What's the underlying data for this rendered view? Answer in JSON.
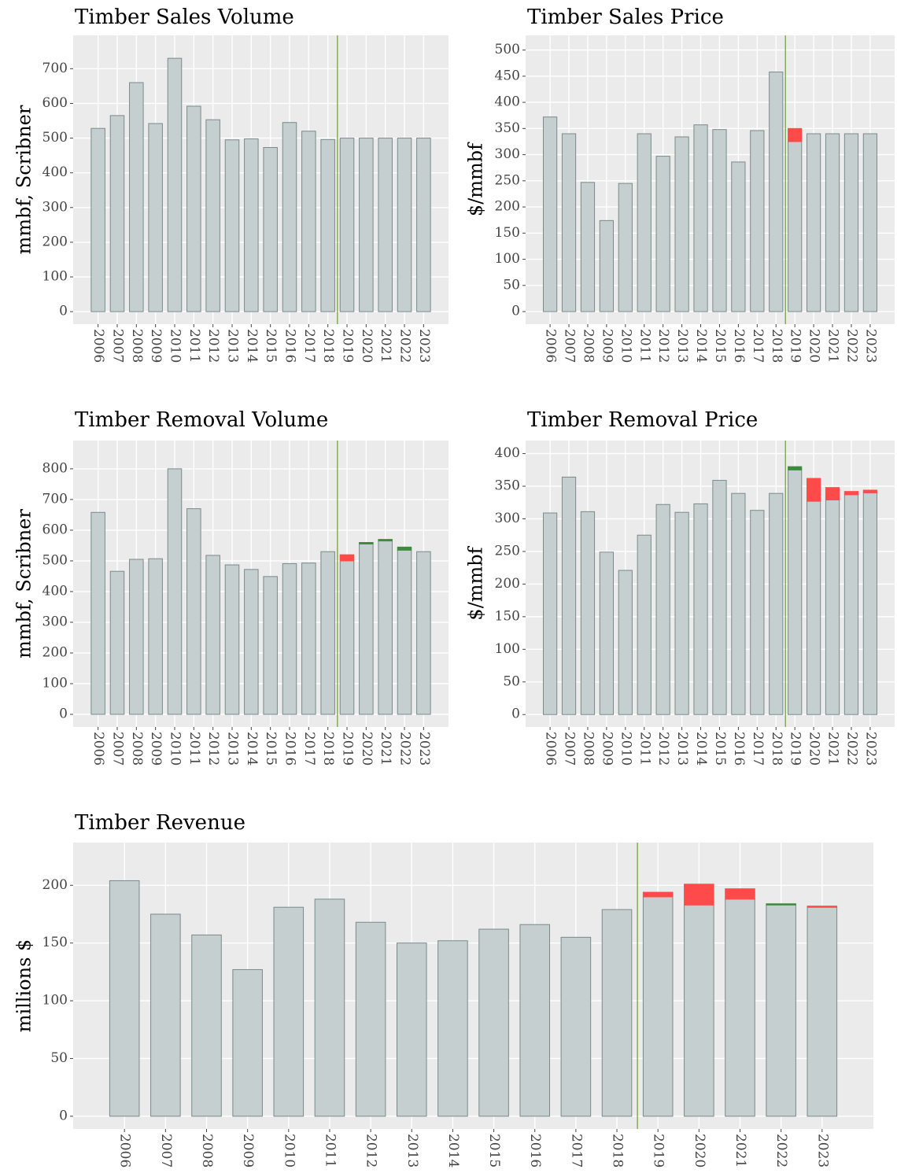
{
  "chart_data": [
    {
      "type": "bar",
      "title": "Timber Sales Volume",
      "y_label": "mmbf, Scribner",
      "categories": [
        "2006",
        "2007",
        "2008",
        "2009",
        "2010",
        "2011",
        "2012",
        "2013",
        "2014",
        "2015",
        "2016",
        "2017",
        "2018",
        "2019",
        "2020",
        "2021",
        "2022",
        "2023"
      ],
      "series": [
        {
          "color": "#c5cfcf",
          "values": [
            528,
            565,
            660,
            542,
            730,
            592,
            553,
            495,
            498,
            473,
            545,
            520,
            496,
            500,
            500,
            500,
            500,
            500
          ]
        },
        {
          "color": "#ff4a4a",
          "values": [
            null,
            null,
            null,
            null,
            null,
            null,
            null,
            null,
            null,
            null,
            null,
            null,
            null,
            null,
            null,
            null,
            null,
            null
          ]
        },
        {
          "color": "#3c8c3c",
          "values": [
            null,
            null,
            null,
            null,
            null,
            null,
            null,
            null,
            null,
            null,
            null,
            null,
            null,
            null,
            null,
            null,
            null,
            null
          ]
        }
      ],
      "ylim": [
        -36,
        796
      ],
      "yticks": [
        0,
        100,
        200,
        300,
        400,
        500,
        600,
        700
      ],
      "grid": true,
      "vline_x": 12.5,
      "vline_color": "#6b9a3a"
    },
    {
      "type": "bar",
      "title": "Timber Sales Price",
      "y_label": "$/mmbf",
      "categories": [
        "2006",
        "2007",
        "2008",
        "2009",
        "2010",
        "2011",
        "2012",
        "2013",
        "2014",
        "2015",
        "2016",
        "2017",
        "2018",
        "2019",
        "2020",
        "2021",
        "2022",
        "2023"
      ],
      "series": [
        {
          "color": "#c5cfcf",
          "values": [
            372,
            340,
            247,
            174,
            245,
            340,
            297,
            334,
            357,
            348,
            286,
            346,
            458,
            325,
            340,
            340,
            340,
            340
          ]
        },
        {
          "color": "#ff4a4a",
          "values": [
            null,
            null,
            null,
            null,
            null,
            null,
            null,
            null,
            null,
            null,
            null,
            null,
            null,
            25,
            null,
            null,
            null,
            null
          ]
        },
        {
          "color": "#3c8c3c",
          "values": [
            null,
            null,
            null,
            null,
            null,
            null,
            null,
            null,
            null,
            null,
            null,
            null,
            null,
            null,
            null,
            null,
            null,
            null
          ]
        }
      ],
      "ylim": [
        -24,
        528
      ],
      "yticks": [
        0,
        50,
        100,
        150,
        200,
        250,
        300,
        350,
        400,
        450,
        500
      ],
      "grid": true,
      "vline_x": 12.5,
      "vline_color": "#6b9a3a"
    },
    {
      "type": "bar",
      "title": "Timber Removal Volume",
      "y_label": "mmbf, Scribner",
      "categories": [
        "2006",
        "2007",
        "2008",
        "2009",
        "2010",
        "2011",
        "2012",
        "2013",
        "2014",
        "2015",
        "2016",
        "2017",
        "2018",
        "2019",
        "2020",
        "2021",
        "2022",
        "2023"
      ],
      "series": [
        {
          "color": "#c5cfcf",
          "values": [
            658,
            466,
            505,
            507,
            800,
            670,
            518,
            487,
            472,
            449,
            491,
            493,
            530,
            500,
            555,
            565,
            535,
            530
          ]
        },
        {
          "color": "#ff4a4a",
          "values": [
            null,
            null,
            null,
            null,
            null,
            null,
            null,
            null,
            null,
            null,
            null,
            null,
            null,
            20,
            null,
            null,
            null,
            null
          ]
        },
        {
          "color": "#3c8c3c",
          "values": [
            null,
            null,
            null,
            null,
            null,
            null,
            null,
            null,
            null,
            null,
            null,
            null,
            null,
            null,
            5,
            5,
            10,
            null
          ]
        }
      ],
      "ylim": [
        -41,
        892
      ],
      "yticks": [
        0,
        100,
        200,
        300,
        400,
        500,
        600,
        700,
        800
      ],
      "grid": true,
      "vline_x": 12.5,
      "vline_color": "#6b9a3a"
    },
    {
      "type": "bar",
      "title": "Timber Removal Price",
      "y_label": "$/mmbf",
      "categories": [
        "2006",
        "2007",
        "2008",
        "2009",
        "2010",
        "2011",
        "2012",
        "2013",
        "2014",
        "2015",
        "2016",
        "2017",
        "2018",
        "2019",
        "2020",
        "2021",
        "2022",
        "2023"
      ],
      "series": [
        {
          "color": "#c5cfcf",
          "values": [
            309,
            364,
            311,
            249,
            221,
            275,
            322,
            310,
            323,
            359,
            339,
            313,
            339,
            375,
            327,
            329,
            337,
            340
          ]
        },
        {
          "color": "#ff4a4a",
          "values": [
            null,
            null,
            null,
            null,
            null,
            null,
            null,
            null,
            null,
            null,
            null,
            null,
            null,
            null,
            35,
            19,
            5,
            4
          ]
        },
        {
          "color": "#3c8c3c",
          "values": [
            null,
            null,
            null,
            null,
            null,
            null,
            null,
            null,
            null,
            null,
            null,
            null,
            null,
            5,
            null,
            null,
            null,
            null
          ]
        }
      ],
      "ylim": [
        -19,
        420
      ],
      "yticks": [
        0,
        50,
        100,
        150,
        200,
        250,
        300,
        350,
        400
      ],
      "grid": true,
      "vline_x": 12.5,
      "vline_color": "#6b9a3a"
    },
    {
      "type": "bar",
      "title": "Timber Revenue",
      "y_label": "millions $",
      "categories": [
        "2006",
        "2007",
        "2008",
        "2009",
        "2010",
        "2011",
        "2012",
        "2013",
        "2014",
        "2015",
        "2016",
        "2017",
        "2018",
        "2019",
        "2020",
        "2021",
        "2022",
        "2023"
      ],
      "series": [
        {
          "color": "#c5cfcf",
          "values": [
            204,
            175,
            157,
            127,
            181,
            188,
            168,
            150,
            152,
            162,
            166,
            155,
            179,
            190,
            183,
            188,
            183,
            181
          ]
        },
        {
          "color": "#ff4a4a",
          "values": [
            null,
            null,
            null,
            null,
            null,
            null,
            null,
            null,
            null,
            null,
            null,
            null,
            null,
            4,
            18,
            9,
            null,
            1
          ]
        },
        {
          "color": "#3c8c3c",
          "values": [
            null,
            null,
            null,
            null,
            null,
            null,
            null,
            null,
            null,
            null,
            null,
            null,
            null,
            null,
            null,
            null,
            1,
            null
          ]
        }
      ],
      "ylim": [
        -11,
        237
      ],
      "yticks": [
        0,
        50,
        100,
        150,
        200
      ],
      "grid": true,
      "vline_x": 12.5,
      "vline_color": "#6b9a3a"
    }
  ]
}
